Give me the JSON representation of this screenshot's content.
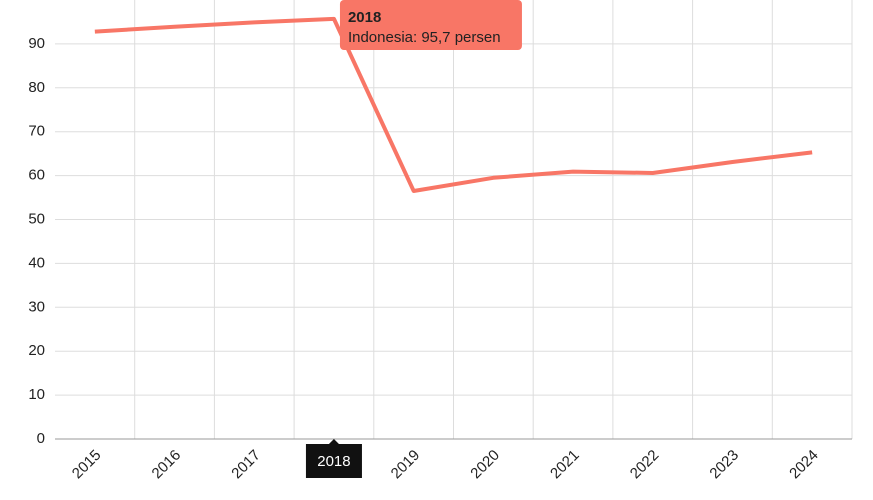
{
  "chart_data": {
    "type": "line",
    "categories": [
      "2015",
      "2016",
      "2017",
      "2018",
      "2019",
      "2020",
      "2021",
      "2022",
      "2023",
      "2024"
    ],
    "series": [
      {
        "name": "Indonesia",
        "color": "#f87666",
        "values": [
          92.8,
          93.9,
          94.9,
          95.7,
          56.5,
          59.5,
          60.9,
          60.6,
          63.1,
          65.3
        ]
      }
    ],
    "ylim": [
      0,
      100
    ],
    "yticks": [
      0,
      10,
      20,
      30,
      40,
      50,
      60,
      70,
      80,
      90
    ],
    "grid": true,
    "tooltip": {
      "title": "2018",
      "text": "Indonesia: 95,7 persen"
    }
  }
}
